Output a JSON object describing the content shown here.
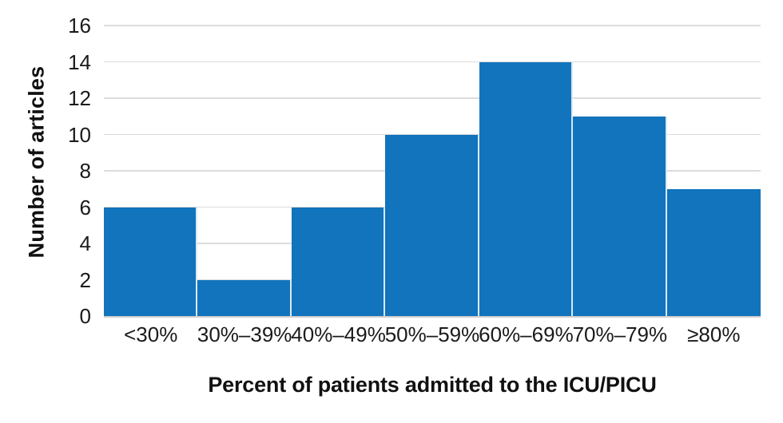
{
  "chart_data": {
    "type": "bar",
    "title": "",
    "categories": [
      "<30%",
      "30%–39%",
      "40%–49%",
      "50%–59%",
      "60%–69%",
      "70%–79%",
      "≥80%"
    ],
    "values": [
      6,
      2,
      6,
      10,
      14,
      11,
      7
    ],
    "xlabel": "Percent of patients admitted to the ICU/PICU",
    "ylabel": "Number of articles",
    "ylim": [
      0,
      16
    ],
    "yticks": [
      0,
      2,
      4,
      6,
      8,
      10,
      12,
      14,
      16
    ],
    "grid": "horizontal",
    "legend": "none",
    "colors": {
      "bar": "#1174BC",
      "gridline": "#DCDCDC",
      "bar_separator": "rgba(255,255,255,0.85)",
      "text": "#111111",
      "tick_text": "#1A1A1A"
    }
  }
}
